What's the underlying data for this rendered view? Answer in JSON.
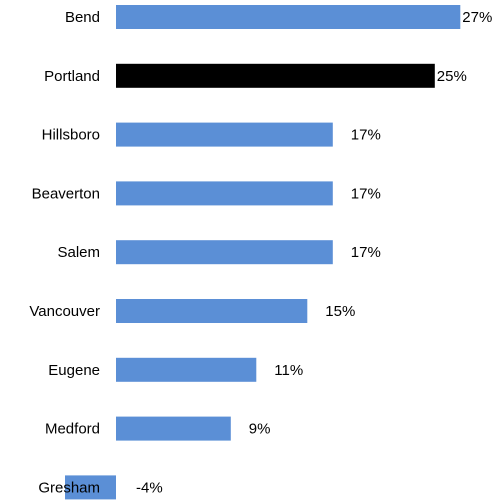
{
  "chart_data": {
    "type": "bar",
    "orientation": "horizontal",
    "categories": [
      "Bend",
      "Portland",
      "Hillsboro",
      "Beaverton",
      "Salem",
      "Vancouver",
      "Eugene",
      "Medford",
      "Gresham"
    ],
    "values": [
      27,
      25,
      17,
      17,
      17,
      15,
      11,
      9,
      -4
    ],
    "value_labels": [
      "27%",
      "25%",
      "17%",
      "17%",
      "17%",
      "15%",
      "11%",
      "9%",
      "-4%"
    ],
    "highlight_category": "Portland",
    "colors": {
      "bar": "#5B8FD6",
      "highlight": "#000000"
    },
    "title": "",
    "xlabel": "",
    "ylabel": "",
    "grid": false,
    "legend": false
  }
}
